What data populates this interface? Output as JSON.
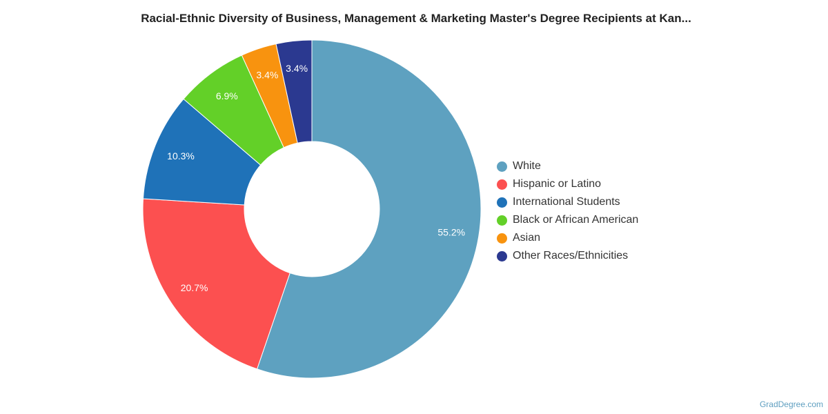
{
  "chart_data": {
    "type": "pie",
    "title": "Racial-Ethnic Diversity of Business, Management & Marketing Master's Degree Recipients at Kan...",
    "donut": true,
    "legend_position": "right",
    "categories": [
      "White",
      "Hispanic or Latino",
      "International Students",
      "Black or African American",
      "Asian",
      "Other Races/Ethnicities"
    ],
    "values": [
      55.2,
      20.7,
      10.3,
      6.9,
      3.4,
      3.4
    ],
    "labels": [
      "55.2%",
      "20.7%",
      "10.3%",
      "6.9%",
      "3.4%",
      "3.4%"
    ],
    "colors": [
      "#5ea1c0",
      "#fc5050",
      "#1f72b8",
      "#63d028",
      "#f8930f",
      "#2b3990"
    ]
  },
  "watermark": "GradDegree.com"
}
